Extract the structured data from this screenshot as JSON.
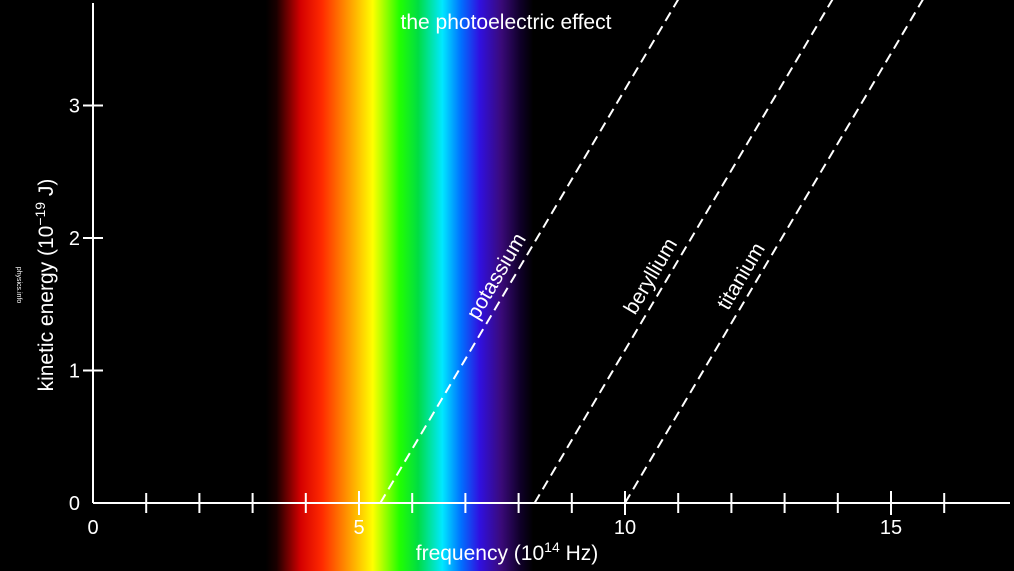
{
  "chart_data": {
    "type": "line",
    "title": "the photoelectric effect",
    "xlabel": {
      "text": "frequency (10",
      "sup": "14",
      "unit": " Hz)"
    },
    "ylabel": {
      "text": "kinetic energy (10",
      "sup": "−19",
      "unit": " J)"
    },
    "watermark": "physics.info",
    "xlim": [
      0,
      17
    ],
    "ylim": [
      0,
      3.8
    ],
    "x_major_ticks": [
      0,
      5,
      10,
      15
    ],
    "x_minor_ticks": [
      1,
      2,
      3,
      4,
      6,
      7,
      8,
      9,
      11,
      12,
      13,
      14,
      16
    ],
    "y_ticks": [
      0,
      1,
      2,
      3
    ],
    "grid": false,
    "background_band": {
      "name": "visible spectrum",
      "x_range": [
        4.0,
        7.9
      ]
    },
    "series": [
      {
        "name": "potassium",
        "style": "dashed",
        "points": [
          [
            5.4,
            0
          ],
          [
            11.0,
            3.8
          ]
        ]
      },
      {
        "name": "beryllium",
        "style": "dashed",
        "points": [
          [
            8.3,
            0
          ],
          [
            13.9,
            3.8
          ]
        ]
      },
      {
        "name": "titanium",
        "style": "dashed",
        "points": [
          [
            10.0,
            0
          ],
          [
            15.6,
            3.8
          ]
        ]
      }
    ],
    "colors": {
      "background": "#000000",
      "foreground": "#ffffff",
      "spectrum": [
        "#000000",
        "#ff0000",
        "#ff8000",
        "#ffff00",
        "#00ff00",
        "#00ffff",
        "#0000ff",
        "#4b0082",
        "#000000"
      ]
    }
  }
}
